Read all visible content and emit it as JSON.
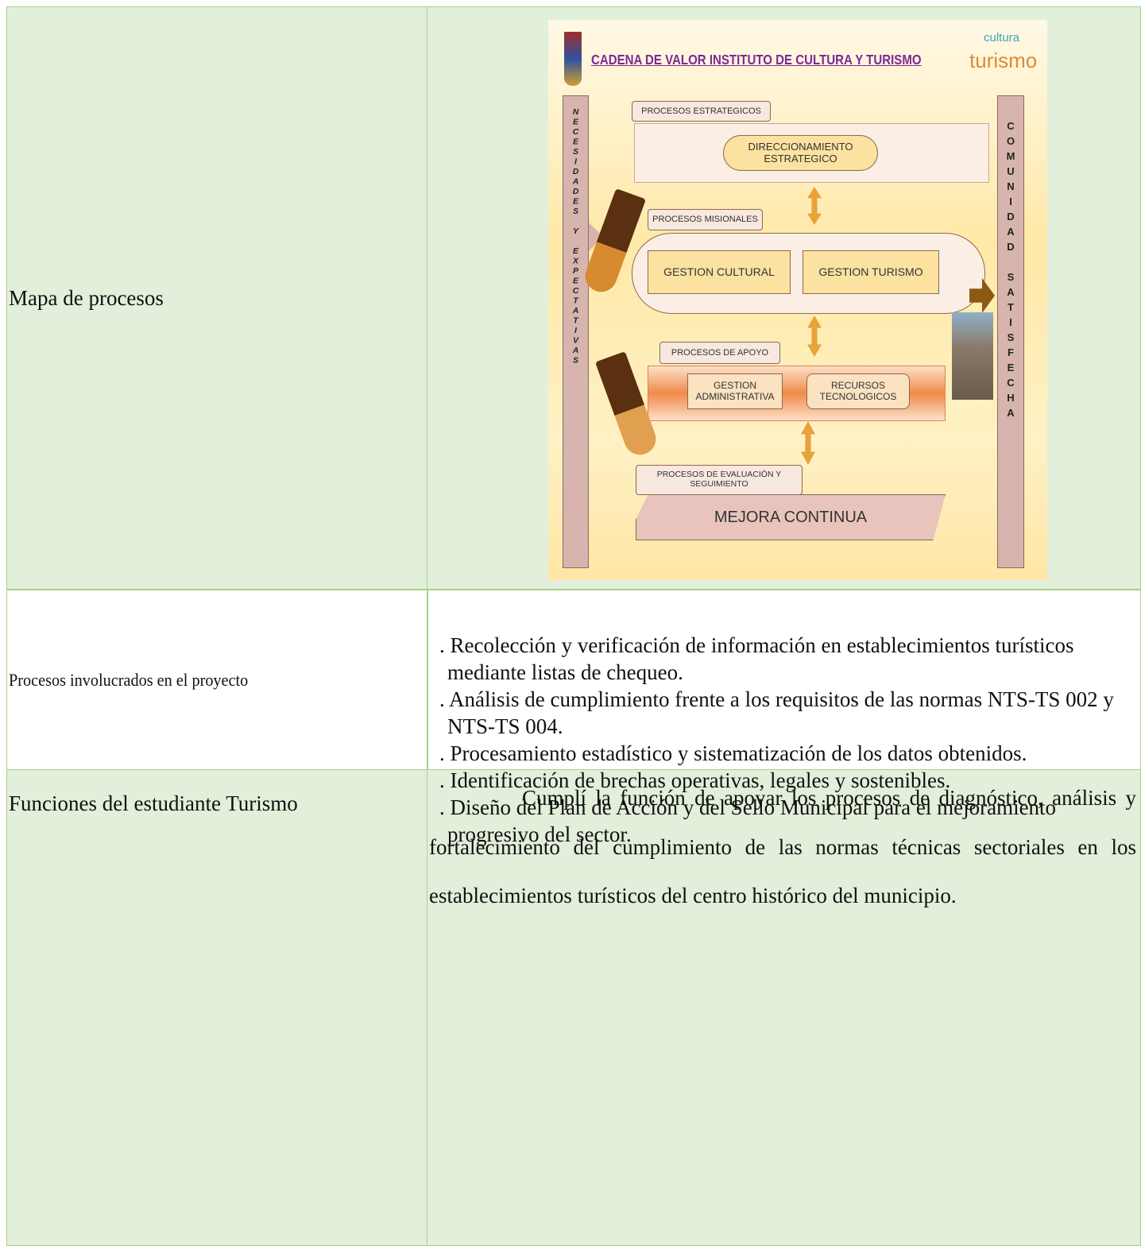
{
  "table": {
    "rows": [
      {
        "label": "Mapa de procesos",
        "diagram": {
          "title": "CADENA DE VALOR INSTITUTO DE CULTURA Y TURISMO",
          "logo_top": "cultura",
          "logo_bottom": "turismo",
          "left_bar": "NECESIDADES Y EXPECTATIVAS",
          "right_bar": "COMUNIDAD SATISFECHA",
          "strategic_label": "PROCESOS ESTRATEGICOS",
          "strategic_box": "DIRECCIONAMIENTO ESTRATEGICO",
          "mission_label": "PROCESOS MISIONALES",
          "mission_boxes": [
            "GESTION CULTURAL",
            "GESTION TURISMO"
          ],
          "support_label": "PROCESOS DE APOYO",
          "support_boxes": [
            "GESTION ADMINISTRATIVA",
            "RECURSOS TECNOLOGICOS"
          ],
          "evaluation_label": "PROCESOS DE EVALUACIÓN Y SEGUIMIENTO",
          "evaluation_box": "MEJORA CONTINUA"
        }
      },
      {
        "label": "Procesos involucrados en el proyecto",
        "items": [
          ". Recolección y verificación de información en establecimientos turísticos mediante listas de chequeo.",
          ". Análisis de cumplimiento frente a los requisitos de las normas NTS-TS 002 y NTS-TS 004.",
          ". Procesamiento estadístico y sistematización de los datos obtenidos.",
          ". Identificación de brechas operativas, legales y sostenibles.",
          ". Diseño del Plan de Acción y del Sello Municipal para el mejoramiento progresivo del sector."
        ]
      },
      {
        "label": "Funciones del estudiante Turismo",
        "text": "Cumplí la función de apoyar los procesos de diagnóstico, análisis y fortalecimiento del cumplimiento de las normas técnicas sectoriales en los establecimientos turísticos del centro histórico del municipio."
      }
    ]
  }
}
